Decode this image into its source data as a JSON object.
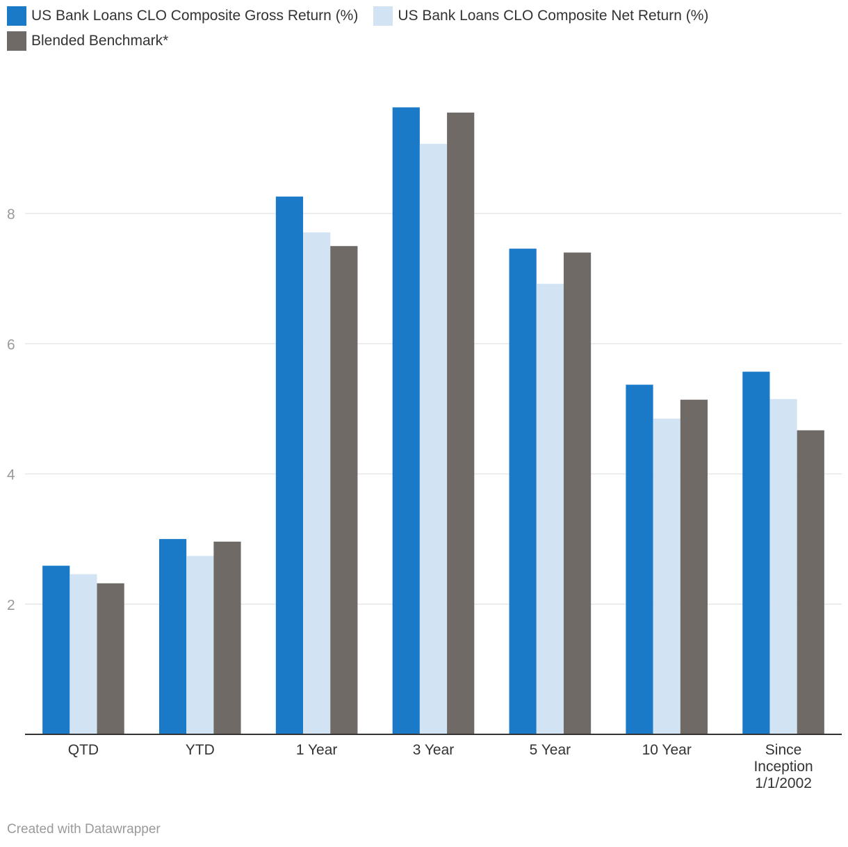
{
  "legend": [
    {
      "label": "US Bank Loans CLO Composite Gross Return (%)",
      "color": "#1a7ac8"
    },
    {
      "label": "US Bank Loans CLO Composite Net Return (%)",
      "color": "#d2e4f3"
    },
    {
      "label": "Blended Benchmark*",
      "color": "#6f6a66"
    }
  ],
  "chart_data": {
    "type": "bar",
    "categories": [
      [
        "QTD"
      ],
      [
        "YTD"
      ],
      [
        "1 Year"
      ],
      [
        "3 Year"
      ],
      [
        "5 Year"
      ],
      [
        "10 Year"
      ],
      [
        "Since",
        "Inception",
        "1/1/2002"
      ]
    ],
    "series": [
      {
        "name": "US Bank Loans CLO Composite Gross Return (%)",
        "color": "#1a7ac8",
        "values": [
          2.59,
          3.0,
          8.26,
          9.63,
          7.46,
          5.37,
          5.57
        ]
      },
      {
        "name": "US Bank Loans CLO Composite Net Return (%)",
        "color": "#d2e4f3",
        "values": [
          2.46,
          2.74,
          7.71,
          9.07,
          6.92,
          4.85,
          5.15
        ]
      },
      {
        "name": "Blended Benchmark*",
        "color": "#6f6a66",
        "values": [
          2.32,
          2.96,
          7.5,
          9.55,
          7.4,
          5.14,
          4.67
        ]
      }
    ],
    "yticks": [
      2,
      4,
      6,
      8
    ],
    "ylim": [
      0,
      10
    ],
    "grid": true,
    "legend_position": "top-left",
    "title": "",
    "xlabel": "",
    "ylabel": ""
  },
  "footer": {
    "credit": "Created with Datawrapper"
  }
}
